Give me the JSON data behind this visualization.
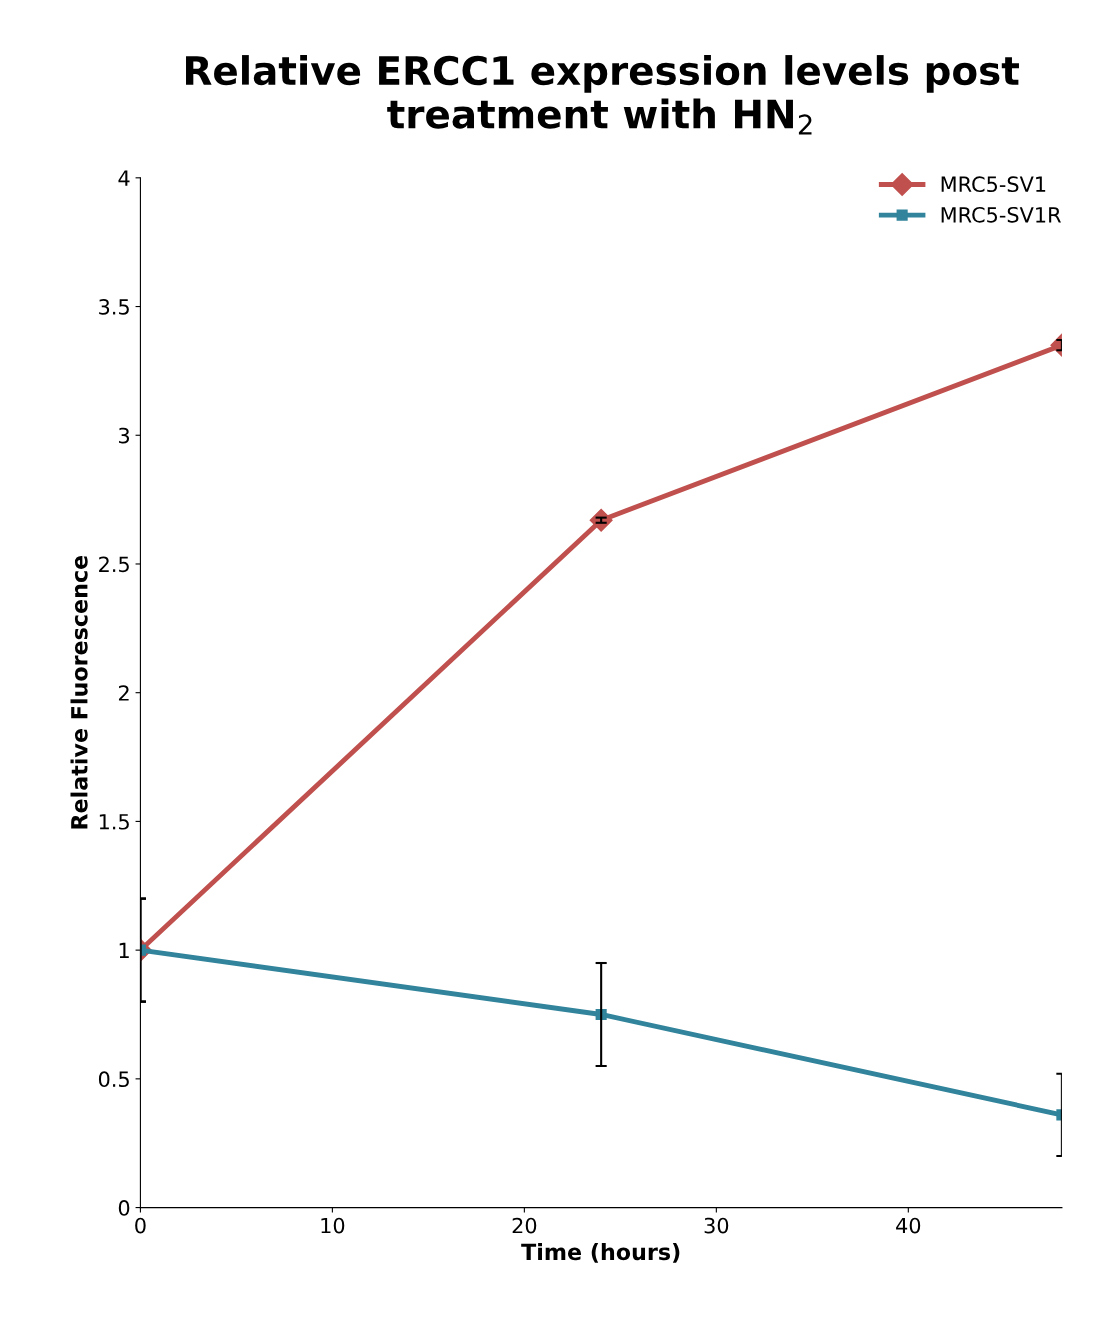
{
  "chart_data": {
    "type": "line",
    "title": "Relative ERCC1 expression levels post treatment with HN$_{2}$",
    "xlabel": "Time (hours)",
    "ylabel": "Relative Fluorescence",
    "x": [
      0,
      24,
      48
    ],
    "series": [
      {
        "name": "MRC5-SV1",
        "color": "#c0504d",
        "values": [
          1,
          2.67,
          3.35
        ],
        "errors": [
          0.2,
          0.01,
          0.02
        ],
        "marker": "diamond"
      },
      {
        "name": "MRC5-SV1R",
        "color": "#31849b",
        "values": [
          1,
          0.75,
          0.36
        ],
        "errors": [
          0.2,
          0.2,
          0.16
        ],
        "marker": "square"
      }
    ],
    "xlim": [
      0,
      48
    ],
    "xticks": [
      0,
      10,
      20,
      30,
      40
    ],
    "ylim": [
      0,
      4
    ],
    "yticks": [
      0,
      0.5,
      1,
      1.5,
      2,
      2.5,
      3,
      3.5,
      4
    ],
    "grid": false,
    "legend": "top right",
    "line_style": "solid"
  }
}
